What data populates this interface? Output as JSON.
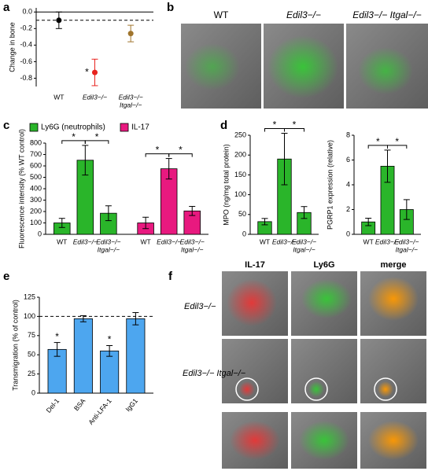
{
  "figure": {
    "panel_labels": [
      "a",
      "b",
      "c",
      "d",
      "e",
      "f"
    ],
    "b": {
      "columns": [
        "WT",
        "Edil3−/−",
        "Edil3−/− Itgal−/−"
      ]
    },
    "f": {
      "columns": [
        "IL-17",
        "Ly6G",
        "merge"
      ],
      "rows": [
        "Edil3−/−",
        "Edil3−/− Itgal−/−"
      ]
    }
  },
  "chart_data": [
    {
      "type": "point",
      "ylabel": "Change in bone",
      "categories": [
        "WT",
        "Edil3−/−",
        [
          "Edil3−/−",
          "Itgal−/−"
        ]
      ],
      "values": [
        -0.1,
        -0.73,
        -0.26
      ],
      "errors": [
        0.1,
        0.16,
        0.1
      ],
      "colors": [
        "#000000",
        "#e8231e",
        "#a0752d"
      ],
      "ylim": [
        -0.9,
        0.05
      ],
      "yticks": [
        {
          "value": 0,
          "label": "0.0"
        },
        -0.2,
        -0.4,
        -0.6,
        -0.8
      ],
      "reference_line": -0.1,
      "annotations": [
        {
          "at": 1,
          "label": "*"
        }
      ]
    },
    {
      "type": "bar",
      "ylabel": "Fluorescence intensity (% WT control)",
      "categories": [
        "WT",
        "Edil3−/−",
        [
          "Edil3−/−",
          "Itgal−/−"
        ]
      ],
      "series": [
        {
          "name": "Ly6G (neutrophils)",
          "color": "#2ab52a",
          "values": [
            100,
            650,
            185
          ],
          "errors": [
            40,
            130,
            65
          ]
        },
        {
          "name": "IL-17",
          "color": "#e8197f",
          "values": [
            100,
            575,
            205
          ],
          "errors": [
            50,
            90,
            40
          ]
        }
      ],
      "ylim": [
        0,
        800
      ],
      "yticks": [
        0,
        100,
        200,
        300,
        400,
        500,
        600,
        700,
        800
      ],
      "significance": [
        {
          "between": [
            0,
            1
          ],
          "label": "*"
        },
        {
          "between": [
            1,
            2
          ],
          "label": "*"
        },
        {
          "between": [
            3,
            4
          ],
          "label": "*"
        },
        {
          "between": [
            4,
            5
          ],
          "label": "*"
        }
      ]
    },
    {
      "type": "bar",
      "ylabel": "MPO (ng/mg total protein)",
      "categories": [
        "WT",
        "Edil3−/−",
        [
          "Edil3−/−",
          "Itgal−/−"
        ]
      ],
      "color": "#2ab52a",
      "values": [
        32,
        190,
        55
      ],
      "errors": [
        8,
        65,
        15
      ],
      "ylim": [
        0,
        250
      ],
      "yticks": [
        0,
        50,
        100,
        150,
        200,
        250
      ],
      "significance": [
        {
          "between": [
            0,
            1
          ],
          "label": "*"
        },
        {
          "between": [
            1,
            2
          ],
          "label": "*"
        }
      ]
    },
    {
      "type": "bar",
      "ylabel": "PGRP1 expression (relative)",
      "categories": [
        "WT",
        "Edil3−/−",
        [
          "Edil3−/−",
          "Itgal−/−"
        ]
      ],
      "color": "#2ab52a",
      "values": [
        1,
        5.5,
        2
      ],
      "errors": [
        0.3,
        1.3,
        0.8
      ],
      "ylim": [
        0,
        8
      ],
      "yticks": [
        0,
        2,
        4,
        6,
        8
      ],
      "significance": [
        {
          "between": [
            0,
            1
          ],
          "label": "*"
        },
        {
          "between": [
            1,
            2
          ],
          "label": "*"
        }
      ]
    },
    {
      "type": "bar",
      "ylabel": "Transmigration (% of control)",
      "categories": [
        "Del-1",
        "BSA",
        "Anti-LFA-1",
        "IgG1"
      ],
      "color": "#4da6ef",
      "values": [
        57,
        97,
        55,
        97
      ],
      "errors": [
        9,
        4,
        7,
        8
      ],
      "ylim": [
        0,
        125
      ],
      "yticks": [
        0,
        25,
        50,
        75,
        100,
        125
      ],
      "reference_line": 100,
      "annotations": [
        {
          "at": 0,
          "label": "*"
        },
        {
          "at": 2,
          "label": "*"
        }
      ]
    }
  ]
}
